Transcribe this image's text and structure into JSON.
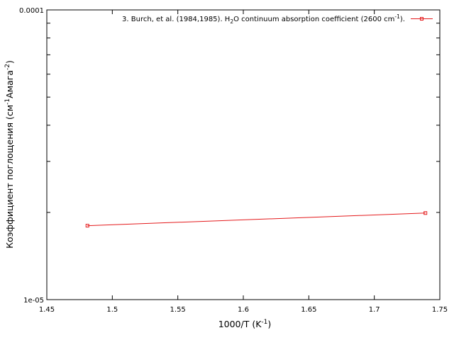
{
  "chart_data": {
    "type": "line",
    "title": "",
    "xlabel": {
      "main": "1000/T (K",
      "sup": "-1",
      "close": ")"
    },
    "ylabel": {
      "main": "Коэффициент поглощения (см",
      "sup1": "-1",
      "mid": "Амага",
      "sup2": "-2",
      "close": ")"
    },
    "x_scale": "linear",
    "y_scale": "log",
    "xlim": [
      1.45,
      1.75
    ],
    "ylim": [
      1e-05,
      0.0001
    ],
    "x_ticks": [
      1.45,
      1.5,
      1.55,
      1.6,
      1.65,
      1.7,
      1.75
    ],
    "x_tick_labels": [
      "1.45",
      "1.5",
      "1.55",
      "1.6",
      "1.65",
      "1.7",
      "1.75"
    ],
    "y_ticks": [
      1e-05,
      0.0001
    ],
    "y_tick_labels": [
      "1e-05",
      "0.0001"
    ],
    "grid": false,
    "legend_position": "top-right",
    "series": [
      {
        "name_parts": {
          "a": "3. Burch, et al. (1984,1985). H",
          "sub": "2",
          "b": "O continuum absorption coefficient (2600 cm",
          "sup": "-1",
          "c": ")."
        },
        "color": "#e41a1c",
        "marker": "square",
        "x": [
          1.481,
          1.739
        ],
        "y": [
          1.8e-05,
          1.99e-05
        ]
      }
    ]
  }
}
